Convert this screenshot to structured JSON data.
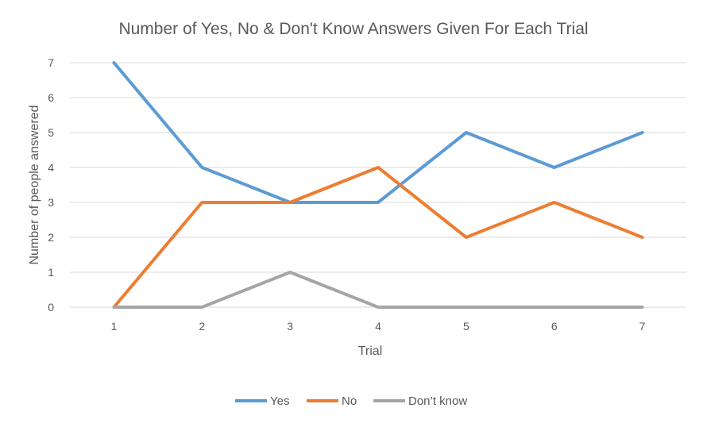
{
  "chart_data": {
    "type": "line",
    "title": "Number of Yes, No & Don't Know Answers Given For Each Trial",
    "xlabel": "Trial",
    "ylabel": "Number of people answered",
    "categories": [
      "1",
      "2",
      "3",
      "4",
      "5",
      "6",
      "7"
    ],
    "y_ticks": [
      "0",
      "1",
      "2",
      "3",
      "4",
      "5",
      "6",
      "7"
    ],
    "ylim": [
      0,
      7
    ],
    "grid": true,
    "legend_position": "bottom",
    "series": [
      {
        "name": "Yes",
        "color": "#5b9bd5",
        "values": [
          7,
          4,
          3,
          3,
          5,
          4,
          5
        ]
      },
      {
        "name": "No",
        "color": "#ed7d31",
        "values": [
          0,
          3,
          3,
          4,
          2,
          3,
          2
        ]
      },
      {
        "name": "Don’t know",
        "color": "#a5a5a5",
        "values": [
          0,
          0,
          1,
          0,
          0,
          0,
          0
        ]
      }
    ]
  }
}
